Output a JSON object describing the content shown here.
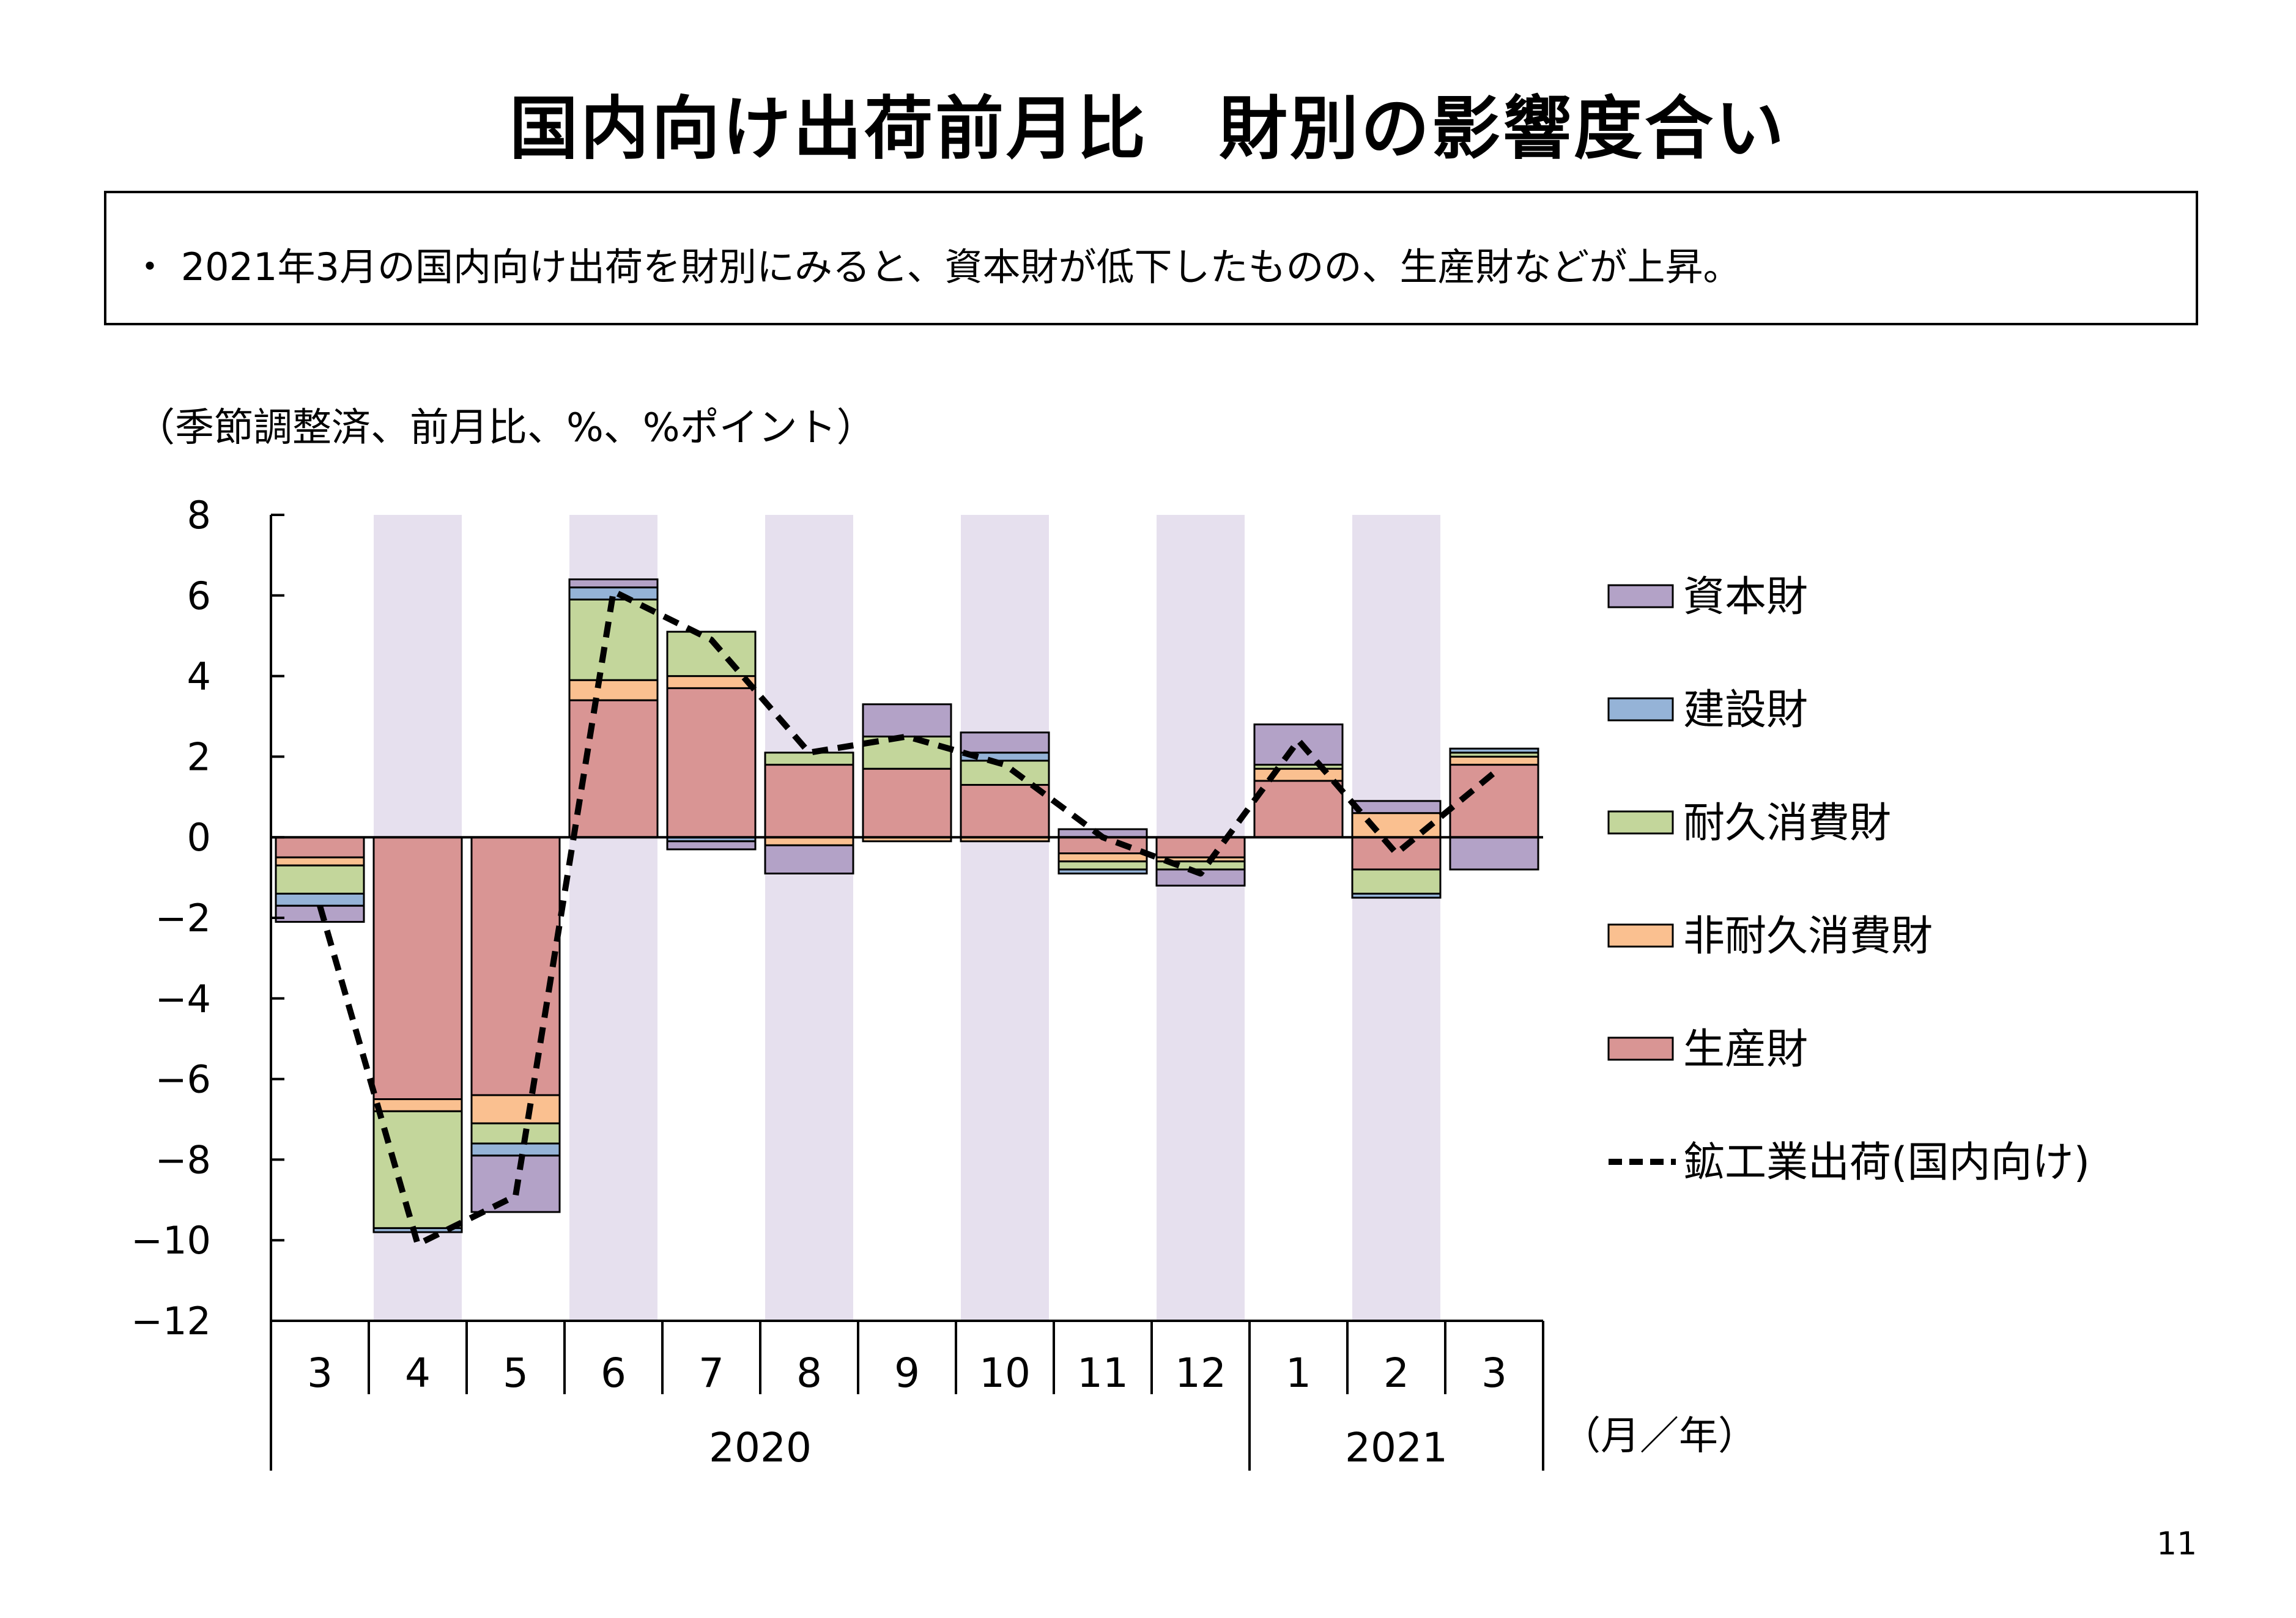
{
  "page": {
    "title": "国内向け出荷前月比　財別の影響度合い",
    "summary": "・ 2021年3月の国内向け出荷を財別にみると、資本財が低下したものの、生産財などが上昇。",
    "note": "（季節調整済、前月比、%、%ポイント）",
    "page_number": "11"
  },
  "chart_data": {
    "type": "bar",
    "stacked": true,
    "title": "",
    "xlabel": "（月／年）",
    "ylabel": "",
    "ylim": [
      -12,
      8
    ],
    "yticks": [
      8,
      6,
      4,
      2,
      0,
      -2,
      -4,
      -6,
      -8,
      -10,
      -12
    ],
    "ytick_labels": [
      "8",
      "6",
      "4",
      "2",
      "0",
      "−2",
      "−4",
      "−6",
      "−8",
      "−10",
      "−12"
    ],
    "categories": [
      "3",
      "4",
      "5",
      "6",
      "7",
      "8",
      "9",
      "10",
      "11",
      "12",
      "1",
      "2",
      "3"
    ],
    "year_groups": [
      {
        "label": "2020",
        "start": 0,
        "end": 9
      },
      {
        "label": "2021",
        "start": 10,
        "end": 12
      }
    ],
    "shaded_months": [
      1,
      3,
      5,
      7,
      9,
      11
    ],
    "legend_position": "right",
    "series": [
      {
        "name": "生産財",
        "color": "#D99594",
        "values": [
          -0.5,
          -6.5,
          -6.4,
          3.4,
          3.7,
          1.8,
          1.7,
          1.3,
          -0.4,
          -0.5,
          1.4,
          -0.8,
          1.8
        ]
      },
      {
        "name": "非耐久消費財",
        "color": "#FAC090",
        "values": [
          -0.2,
          -0.3,
          -0.7,
          0.5,
          0.3,
          -0.2,
          -0.1,
          -0.1,
          -0.2,
          -0.1,
          0.3,
          0.6,
          0.2
        ]
      },
      {
        "name": "耐久消費財",
        "color": "#C3D69B",
        "values": [
          -0.7,
          -2.9,
          -0.5,
          2.0,
          1.1,
          0.3,
          0.8,
          0.6,
          -0.2,
          -0.2,
          0.1,
          -0.6,
          0.1
        ]
      },
      {
        "name": "建設財",
        "color": "#95B3D7",
        "values": [
          -0.3,
          -0.1,
          -0.3,
          0.3,
          -0.1,
          0.0,
          0.0,
          0.2,
          -0.1,
          0.0,
          0.0,
          -0.1,
          0.1
        ]
      },
      {
        "name": "資本財",
        "color": "#B3A2C7",
        "values": [
          -0.4,
          0.0,
          -1.4,
          0.2,
          -0.2,
          -0.7,
          0.8,
          0.5,
          0.2,
          -0.4,
          1.0,
          0.3,
          -0.8
        ]
      }
    ],
    "line": {
      "name": "鉱工業出荷(国内向け)",
      "style": "dashed",
      "color": "#000000",
      "values": [
        -1.7,
        -10.1,
        -8.9,
        6.1,
        4.9,
        2.1,
        2.5,
        1.8,
        0.0,
        -0.9,
        2.4,
        -0.4,
        1.6
      ]
    }
  }
}
